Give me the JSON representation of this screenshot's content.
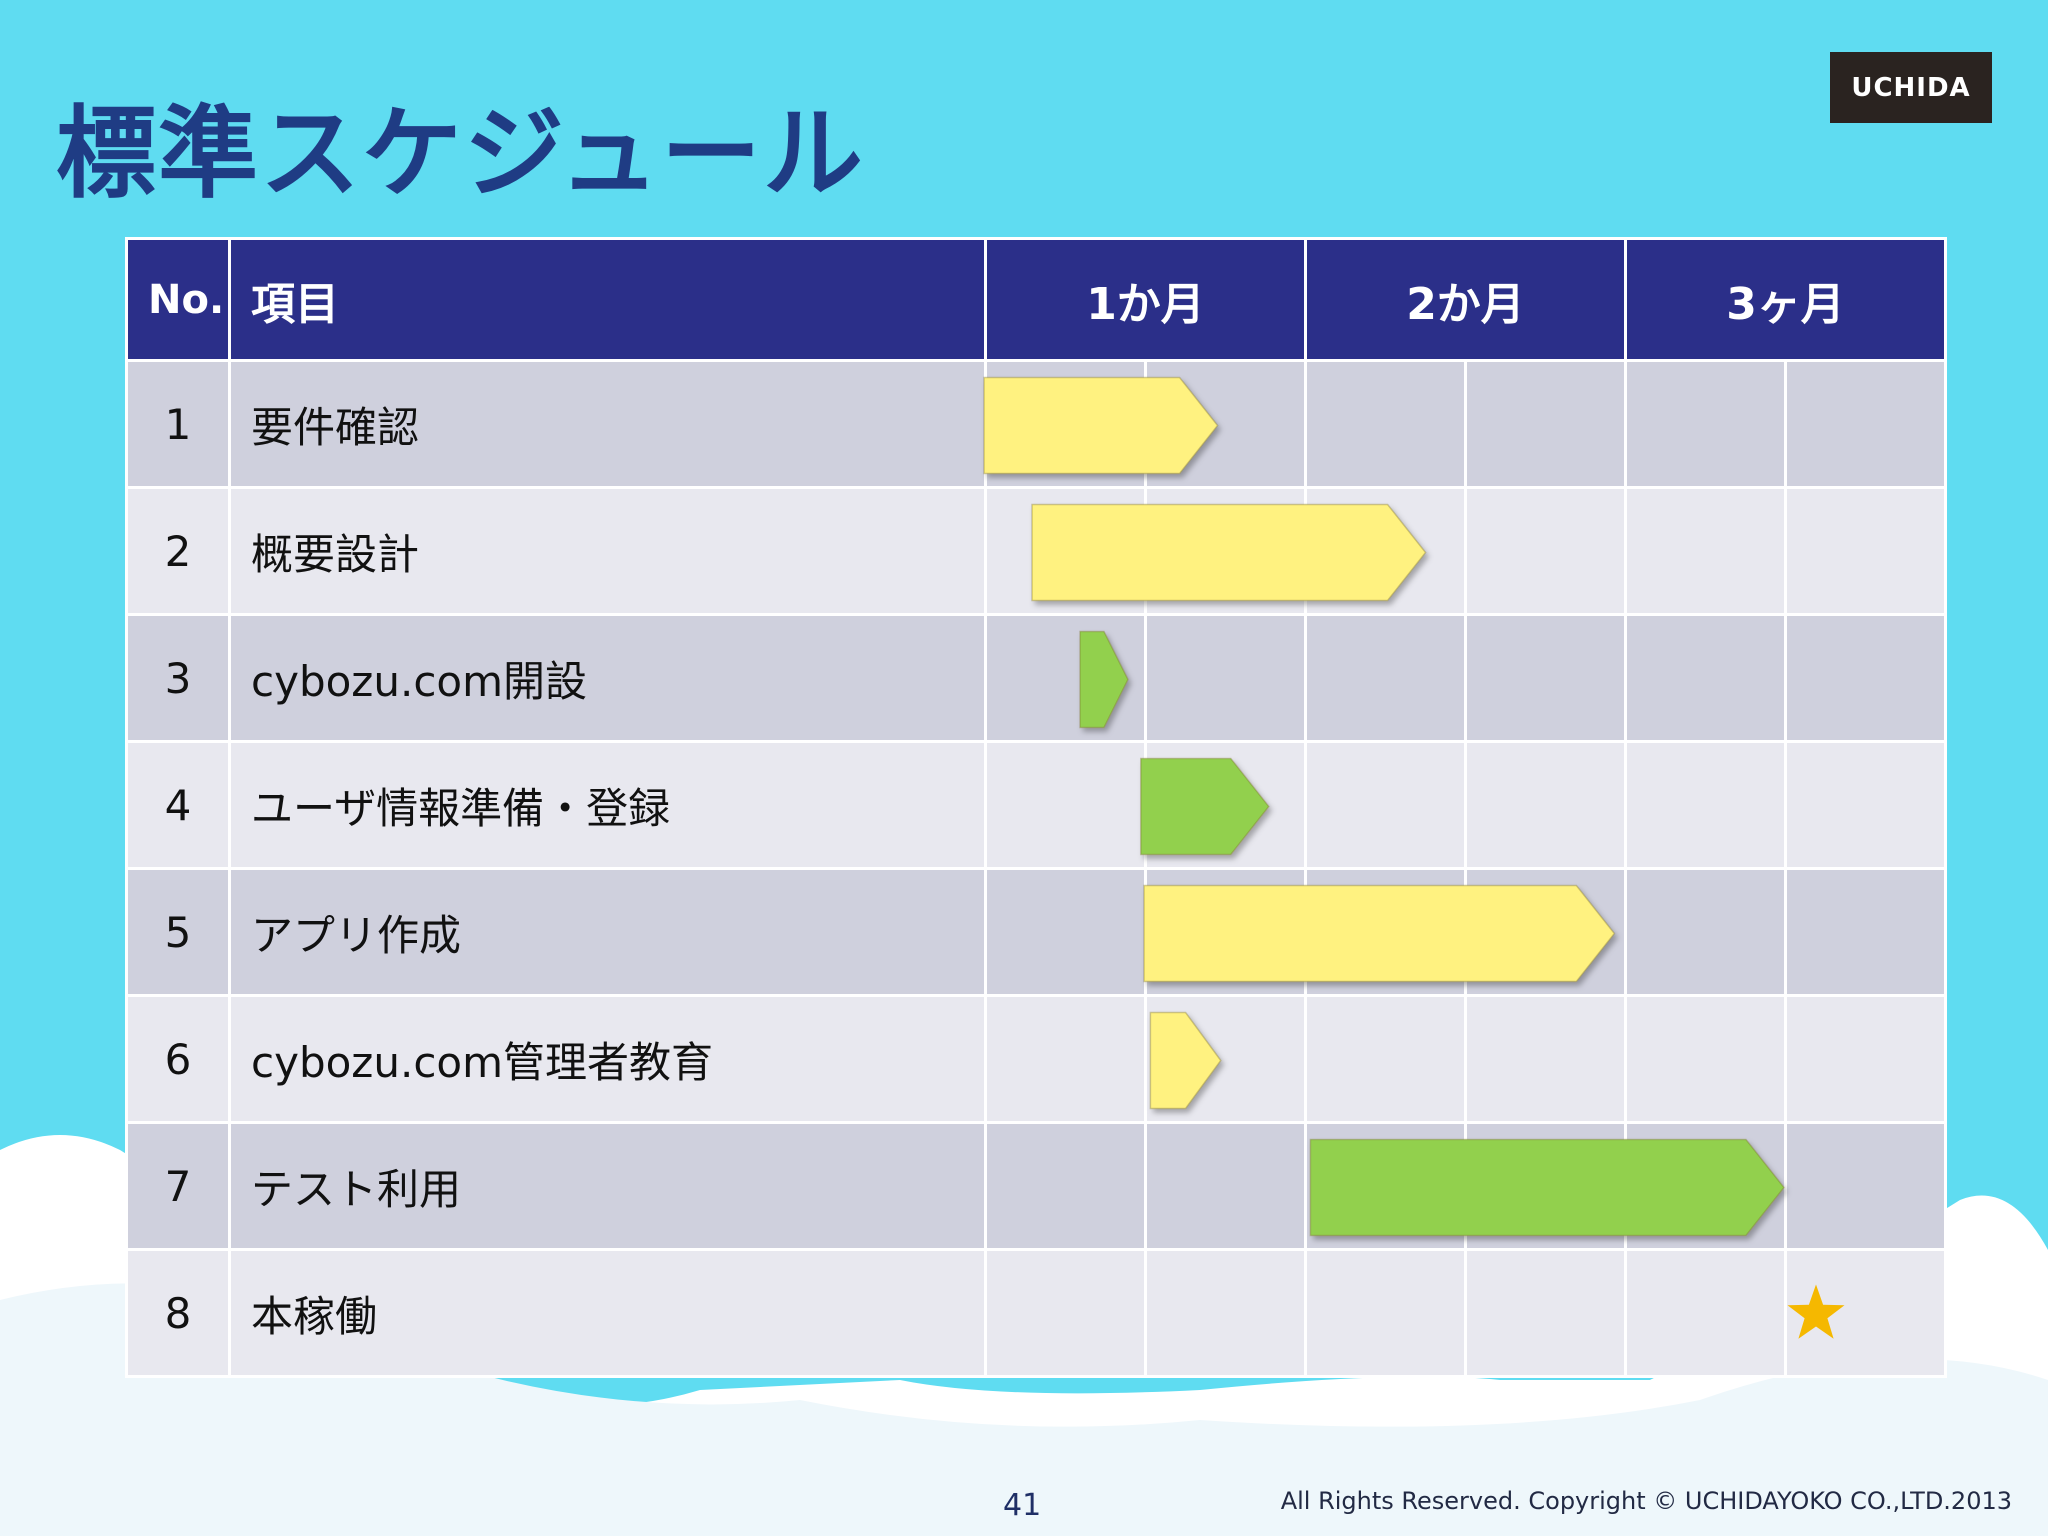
{
  "slide": {
    "title": "標準スケジュール",
    "logo_text": "UCHIDA",
    "page_number": "41",
    "copyright": "All Rights Reserved. Copyright  © UCHIDAYOKO CO.,LTD.2013"
  },
  "table": {
    "headers": {
      "no": "No.",
      "item": "項目",
      "months": [
        "1か月",
        "2か月",
        "3ヶ月"
      ]
    },
    "rows": [
      {
        "no": "1",
        "item": "要件確認",
        "start": 0.0,
        "end": 0.73,
        "color": "#fff280"
      },
      {
        "no": "2",
        "item": "概要設計",
        "start": 0.15,
        "end": 1.38,
        "color": "#fff280"
      },
      {
        "no": "3",
        "item": "cybozu.com開設",
        "start": 0.3,
        "end": 0.45,
        "color": "#92d04e"
      },
      {
        "no": "4",
        "item": "ユーザ情報準備・登録",
        "start": 0.49,
        "end": 0.89,
        "color": "#92d04e"
      },
      {
        "no": "5",
        "item": "アプリ作成",
        "start": 0.5,
        "end": 1.97,
        "color": "#fff280"
      },
      {
        "no": "6",
        "item": "cybozu.com管理者教育",
        "start": 0.52,
        "end": 0.74,
        "color": "#fff280"
      },
      {
        "no": "7",
        "item": "テスト利用",
        "start": 1.02,
        "end": 2.5,
        "color": "#92d04e"
      },
      {
        "no": "8",
        "item": "本稼働",
        "milestone": 2.6,
        "milestone_icon": "star-icon",
        "color": "#f5b800"
      }
    ]
  }
}
